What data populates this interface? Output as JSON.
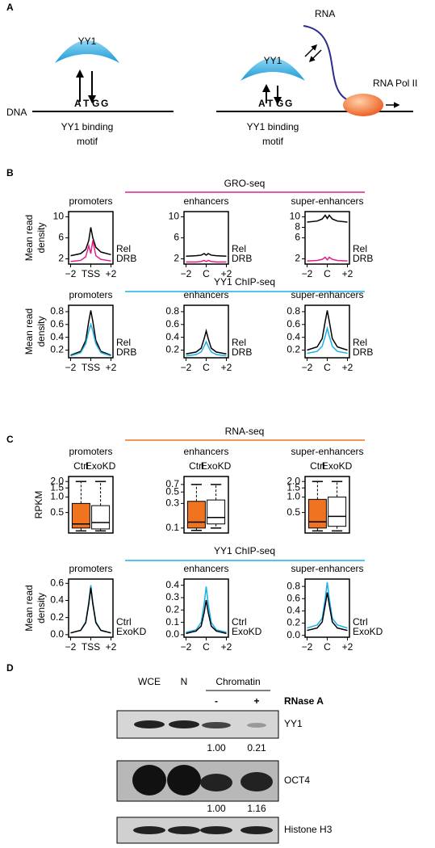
{
  "figure": {
    "panel_labels": [
      "A",
      "B",
      "C",
      "D"
    ]
  },
  "panel_a": {
    "dna": "DNA",
    "left": {
      "protein": "YY1",
      "motif_letters": [
        "A",
        "T",
        "G",
        "G"
      ],
      "motif_label": [
        "YY1 binding",
        "motif"
      ]
    },
    "right": {
      "protein": "YY1",
      "motif_letters": [
        "A",
        "T",
        "G",
        "G"
      ],
      "motif_label": [
        "YY1 binding",
        "motif"
      ],
      "rna": "RNA",
      "polymerase": "RNA Pol II"
    }
  },
  "sections": [
    {
      "title": "GRO-seq",
      "color": "#e0218a"
    },
    {
      "title": "YY1 ChIP-seq",
      "color": "#1ab0e8"
    },
    {
      "title": "RNA-seq",
      "color": "#f07320"
    },
    {
      "title": "YY1 ChIP-seq",
      "color": "#1ab0e8"
    }
  ],
  "chart_data": [
    {
      "type": "line",
      "title": "promoters",
      "ylabel": [
        "Mean read",
        "density"
      ],
      "x": [
        -2,
        -1,
        -0.5,
        -0.2,
        0,
        0.2,
        0.5,
        1,
        2
      ],
      "xlim": [
        -2.2,
        2.2
      ],
      "xticks": [
        {
          "value": -2,
          "label": "−2"
        },
        {
          "value": 0,
          "label": "TSS"
        },
        {
          "value": 2,
          "label": "+2"
        }
      ],
      "ylim": [
        1,
        11
      ],
      "yticks": [
        2,
        6,
        10
      ],
      "series": [
        {
          "name": "Rel",
          "color": "#000000",
          "values": [
            2.6,
            3.0,
            3.8,
            5.5,
            8.0,
            6.0,
            4.2,
            3.3,
            2.8
          ]
        },
        {
          "name": "DRB",
          "color": "#e0218a",
          "values": [
            1.5,
            1.7,
            2.4,
            4.5,
            3.0,
            5.5,
            2.6,
            1.9,
            1.6
          ]
        }
      ]
    },
    {
      "type": "line",
      "title": "enhancers",
      "x": [
        -2,
        -1,
        -0.5,
        -0.2,
        0,
        0.2,
        0.5,
        1,
        2
      ],
      "xlim": [
        -2.2,
        2.2
      ],
      "xticks": [
        {
          "value": -2,
          "label": "−2"
        },
        {
          "value": 0,
          "label": "C"
        },
        {
          "value": 2,
          "label": "+2"
        }
      ],
      "ylim": [
        1,
        11
      ],
      "yticks": [
        2,
        6,
        10
      ],
      "series": [
        {
          "name": "Rel",
          "color": "#000000",
          "values": [
            2.5,
            2.6,
            2.7,
            3.0,
            2.7,
            3.0,
            2.7,
            2.6,
            2.5
          ]
        },
        {
          "name": "DRB",
          "color": "#e0218a",
          "values": [
            1.4,
            1.4,
            1.5,
            1.7,
            1.5,
            1.7,
            1.5,
            1.4,
            1.4
          ]
        }
      ]
    },
    {
      "type": "line",
      "title": "super-enhancers",
      "x": [
        -2,
        -1,
        -0.5,
        -0.2,
        0,
        0.2,
        0.5,
        1,
        2
      ],
      "xlim": [
        -2.2,
        2.2
      ],
      "xticks": [
        {
          "value": -2,
          "label": "−2"
        },
        {
          "value": 0,
          "label": "C"
        },
        {
          "value": 2,
          "label": "+2"
        }
      ],
      "ylim": [
        1,
        11
      ],
      "yticks": [
        2,
        6,
        8,
        10
      ],
      "series": [
        {
          "name": "Rel",
          "color": "#000000",
          "values": [
            9.0,
            9.2,
            9.6,
            10.3,
            9.7,
            10.3,
            9.6,
            9.2,
            9.0
          ]
        },
        {
          "name": "DRB",
          "color": "#e0218a",
          "values": [
            1.6,
            1.7,
            1.9,
            2.3,
            1.8,
            2.3,
            1.9,
            1.7,
            1.6
          ]
        }
      ]
    },
    {
      "type": "line",
      "title": "promoters",
      "ylabel": [
        "Mean read",
        "density"
      ],
      "x": [
        -2,
        -1,
        -0.5,
        -0.2,
        0,
        0.2,
        0.5,
        1,
        2
      ],
      "xlim": [
        -2.2,
        2.2
      ],
      "xticks": [
        {
          "value": -2,
          "label": "−2"
        },
        {
          "value": 0,
          "label": "TSS"
        },
        {
          "value": 2,
          "label": "+2"
        }
      ],
      "ylim": [
        0.08,
        0.9
      ],
      "yticks": [
        0.2,
        0.4,
        0.6,
        0.8
      ],
      "series": [
        {
          "name": "Rel",
          "color": "#000000",
          "values": [
            0.12,
            0.18,
            0.35,
            0.65,
            0.82,
            0.65,
            0.35,
            0.18,
            0.12
          ]
        },
        {
          "name": "DRB",
          "color": "#1ab0e8",
          "values": [
            0.11,
            0.16,
            0.3,
            0.5,
            0.6,
            0.5,
            0.3,
            0.16,
            0.11
          ]
        }
      ]
    },
    {
      "type": "line",
      "title": "enhancers",
      "x": [
        -2,
        -1,
        -0.5,
        -0.2,
        0,
        0.2,
        0.5,
        1,
        2
      ],
      "xlim": [
        -2.2,
        2.2
      ],
      "xticks": [
        {
          "value": -2,
          "label": "−2"
        },
        {
          "value": 0,
          "label": "C"
        },
        {
          "value": 2,
          "label": "+2"
        }
      ],
      "ylim": [
        0.08,
        0.9
      ],
      "yticks": [
        0.2,
        0.4,
        0.6,
        0.8
      ],
      "series": [
        {
          "name": "Rel",
          "color": "#000000",
          "values": [
            0.14,
            0.17,
            0.23,
            0.38,
            0.5,
            0.38,
            0.23,
            0.17,
            0.14
          ]
        },
        {
          "name": "DRB",
          "color": "#1ab0e8",
          "values": [
            0.11,
            0.13,
            0.17,
            0.26,
            0.33,
            0.26,
            0.17,
            0.13,
            0.11
          ]
        }
      ]
    },
    {
      "type": "line",
      "title": "super-enhancers",
      "x": [
        -2,
        -1,
        -0.5,
        -0.2,
        0,
        0.2,
        0.5,
        1,
        2
      ],
      "xlim": [
        -2.2,
        2.2
      ],
      "xticks": [
        {
          "value": -2,
          "label": "−2"
        },
        {
          "value": 0,
          "label": "C"
        },
        {
          "value": 2,
          "label": "+2"
        }
      ],
      "ylim": [
        0.08,
        0.9
      ],
      "yticks": [
        0.2,
        0.4,
        0.6,
        0.8
      ],
      "series": [
        {
          "name": "Rel",
          "color": "#000000",
          "values": [
            0.2,
            0.25,
            0.38,
            0.65,
            0.82,
            0.65,
            0.38,
            0.25,
            0.2
          ]
        },
        {
          "name": "DRB",
          "color": "#1ab0e8",
          "values": [
            0.15,
            0.18,
            0.26,
            0.42,
            0.54,
            0.42,
            0.26,
            0.18,
            0.15
          ]
        }
      ]
    },
    {
      "type": "box",
      "title": "promoters",
      "ylabel": "RPKM",
      "log": true,
      "ylim": [
        0.2,
        2.5
      ],
      "yticks": [
        0.5,
        {
          "value": 1,
          "label": "1.0"
        },
        1.5,
        {
          "value": 2,
          "label": "2.0"
        }
      ],
      "series": [
        {
          "name": "Ctrl",
          "color": "#f07320",
          "low": 0.22,
          "q1": 0.25,
          "median": 0.3,
          "q3": 0.75,
          "high": 2.0
        },
        {
          "name": "ExoKD",
          "color": "#000000",
          "low": 0.22,
          "q1": 0.24,
          "median": 0.32,
          "q3": 0.68,
          "high": 2.0
        }
      ]
    },
    {
      "type": "box",
      "title": "enhancers",
      "log": true,
      "ylim": [
        0.08,
        1.0
      ],
      "yticks": [
        0.1,
        0.3,
        0.5,
        0.7
      ],
      "series": [
        {
          "name": "Ctrl",
          "color": "#f07320",
          "low": 0.09,
          "q1": 0.1,
          "median": 0.13,
          "q3": 0.33,
          "high": 0.7
        },
        {
          "name": "ExoKD",
          "color": "#000000",
          "low": 0.1,
          "q1": 0.12,
          "median": 0.16,
          "q3": 0.35,
          "high": 0.7
        }
      ]
    },
    {
      "type": "box",
      "title": "super-enhancers",
      "log": true,
      "ylim": [
        0.2,
        2.5
      ],
      "yticks": [
        0.5,
        {
          "value": 1,
          "label": "1.0"
        },
        1.5,
        {
          "value": 2,
          "label": "2.0"
        }
      ],
      "series": [
        {
          "name": "Ctrl",
          "color": "#f07320",
          "low": 0.22,
          "q1": 0.25,
          "median": 0.33,
          "q3": 0.9,
          "high": 2.0
        },
        {
          "name": "ExoKD",
          "color": "#000000",
          "low": 0.22,
          "q1": 0.27,
          "median": 0.42,
          "q3": 1.0,
          "high": 2.0
        }
      ]
    },
    {
      "type": "line",
      "title": "promoters",
      "ylabel": [
        "Mean read",
        "density"
      ],
      "x": [
        -2,
        -1,
        -0.5,
        -0.2,
        0,
        0.2,
        0.5,
        1,
        2
      ],
      "xlim": [
        -2.2,
        2.2
      ],
      "xticks": [
        {
          "value": -2,
          "label": "−2"
        },
        {
          "value": 0,
          "label": "TSS"
        },
        {
          "value": 2,
          "label": "+2"
        }
      ],
      "ylim": [
        -0.03,
        0.65
      ],
      "yticks": [
        {
          "value": 0,
          "label": "0.0"
        },
        0.2,
        0.4,
        0.6
      ],
      "series": [
        {
          "name": "Ctrl",
          "color": "#1ab0e8",
          "values": [
            0.02,
            0.05,
            0.15,
            0.38,
            0.58,
            0.38,
            0.15,
            0.05,
            0.02
          ]
        },
        {
          "name": "ExoKD",
          "color": "#000000",
          "values": [
            0.02,
            0.05,
            0.14,
            0.36,
            0.55,
            0.36,
            0.14,
            0.05,
            0.02
          ]
        }
      ]
    },
    {
      "type": "line",
      "title": "enhancers",
      "x": [
        -2,
        -1,
        -0.5,
        -0.2,
        0,
        0.2,
        0.5,
        1,
        2
      ],
      "xlim": [
        -2.2,
        2.2
      ],
      "xticks": [
        {
          "value": -2,
          "label": "−2"
        },
        {
          "value": 0,
          "label": "C"
        },
        {
          "value": 2,
          "label": "+2"
        }
      ],
      "ylim": [
        -0.02,
        0.45
      ],
      "yticks": [
        {
          "value": 0,
          "label": "0.0"
        },
        0.1,
        0.2,
        0.3,
        0.4
      ],
      "series": [
        {
          "name": "Ctrl",
          "color": "#1ab0e8",
          "values": [
            0.02,
            0.04,
            0.1,
            0.25,
            0.39,
            0.25,
            0.1,
            0.04,
            0.02
          ]
        },
        {
          "name": "ExoKD",
          "color": "#000000",
          "values": [
            0.01,
            0.03,
            0.07,
            0.18,
            0.28,
            0.18,
            0.07,
            0.03,
            0.01
          ]
        }
      ]
    },
    {
      "type": "line",
      "title": "super-enhancers",
      "x": [
        -2,
        -1,
        -0.5,
        -0.2,
        0,
        0.2,
        0.5,
        1,
        2
      ],
      "xlim": [
        -2.2,
        2.2
      ],
      "xticks": [
        {
          "value": -2,
          "label": "−2"
        },
        {
          "value": 0,
          "label": "C"
        },
        {
          "value": 2,
          "label": "+2"
        }
      ],
      "ylim": [
        -0.03,
        0.92
      ],
      "yticks": [
        {
          "value": 0,
          "label": "0.0"
        },
        0.2,
        0.4,
        0.6,
        0.8
      ],
      "series": [
        {
          "name": "Ctrl",
          "color": "#1ab0e8",
          "values": [
            0.12,
            0.17,
            0.28,
            0.6,
            0.87,
            0.6,
            0.28,
            0.17,
            0.12
          ]
        },
        {
          "name": "ExoKD",
          "color": "#000000",
          "values": [
            0.08,
            0.12,
            0.22,
            0.5,
            0.7,
            0.5,
            0.22,
            0.12,
            0.08
          ]
        }
      ]
    }
  ],
  "panel_d": {
    "lanes": [
      "WCE",
      "N"
    ],
    "chromatin": "Chromatin",
    "treatment": [
      "-",
      "+"
    ],
    "treatment_label": "RNase A",
    "blots": [
      {
        "label": "YY1",
        "quant": [
          "1.00",
          "0.21"
        ]
      },
      {
        "label": "OCT4",
        "quant": [
          "1.00",
          "1.16"
        ]
      },
      {
        "label": "Histone H3"
      }
    ]
  }
}
